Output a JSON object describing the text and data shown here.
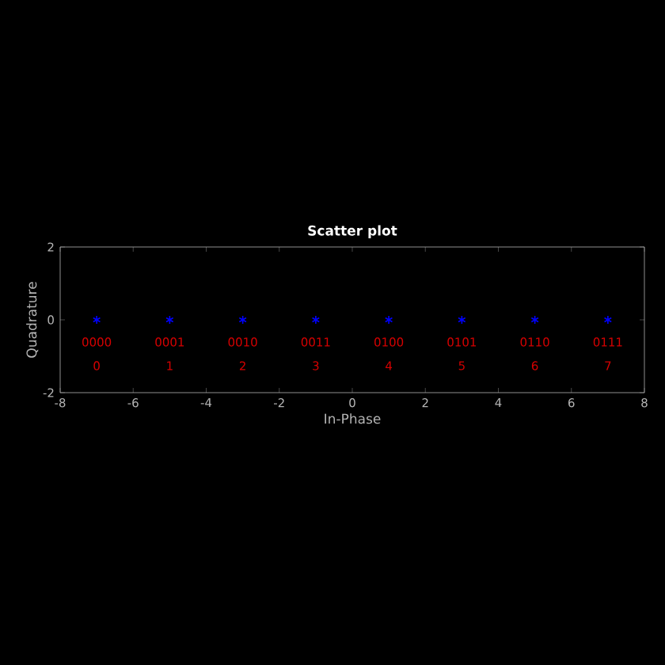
{
  "chart_data": {
    "type": "scatter",
    "title": "Scatter plot",
    "xlabel": "In-Phase",
    "ylabel": "Quadrature",
    "x": [
      -7,
      -5,
      -3,
      -1,
      1,
      3,
      5,
      7
    ],
    "values": [
      0,
      0,
      0,
      0,
      0,
      0,
      0,
      0
    ],
    "color": "#0000ff",
    "marker": "cross",
    "xlim": [
      -8,
      8
    ],
    "ylim": [
      -2,
      2
    ],
    "xticks": [
      -8,
      -6,
      -4,
      -2,
      0,
      2,
      4,
      6,
      8
    ],
    "yticks": [
      -2,
      0,
      2
    ],
    "annotations": [
      {
        "text": "0000",
        "x": -7,
        "y": 0
      },
      {
        "text": "0001",
        "x": -5,
        "y": 0
      },
      {
        "text": "0010",
        "x": -3,
        "y": 0
      },
      {
        "text": "0011",
        "x": -1,
        "y": 0
      },
      {
        "text": "0100",
        "x": 1,
        "y": 0
      },
      {
        "text": "0101",
        "x": 3,
        "y": 0
      },
      {
        "text": "0110",
        "x": 5,
        "y": 0
      },
      {
        "text": "0111",
        "x": 7,
        "y": 0
      },
      "0",
      "1",
      "2",
      "3",
      "4",
      "5",
      "6",
      "7"
    ]
  }
}
